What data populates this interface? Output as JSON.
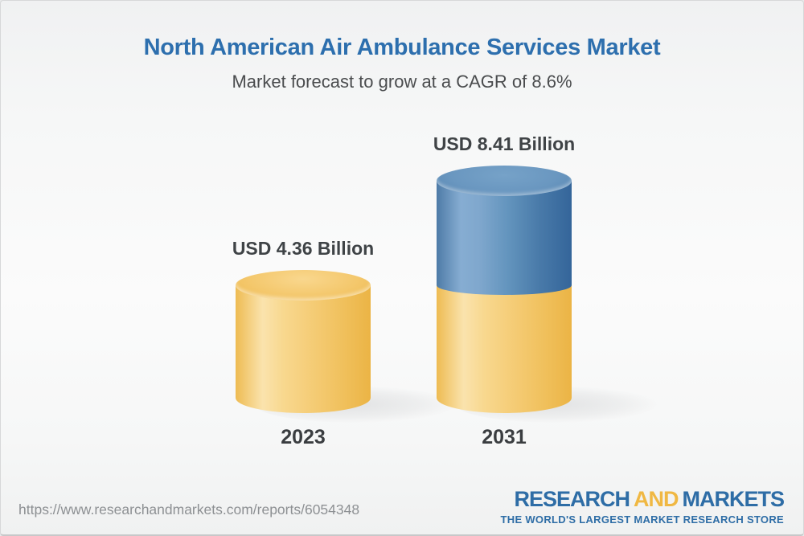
{
  "header": {
    "title": "North American Air Ambulance Services Market",
    "subtitle": "Market forecast to grow at a CAGR of 8.6%"
  },
  "chart_data": {
    "type": "bar",
    "variant": "3d-cylinder-columns",
    "categories": [
      "2023",
      "2031"
    ],
    "values": [
      4.36,
      8.41
    ],
    "value_labels": [
      "USD 4.36 Billion",
      "USD 8.41 Billion"
    ],
    "unit": "USD Billion",
    "cagr_percent": 8.6,
    "title": "North American Air Ambulance Services Market",
    "subtitle": "Market forecast to grow at a CAGR of 8.6%",
    "legend_position": "none",
    "grid": false,
    "axes_shown": false,
    "stacking_note": "2031 column is stacked: yellow lower segment equals the 2023 base value, blue upper segment is forecast growth",
    "colors": {
      "base_segment_yellow": "#f2c35e",
      "growth_segment_blue": "#4b7aa6"
    }
  },
  "footer": {
    "url": "https://www.researchandmarkets.com/reports/6054348",
    "logo": {
      "part1": "RESEARCH",
      "part2": "AND",
      "part3": "MARKETS",
      "tagline": "THE WORLD'S LARGEST MARKET RESEARCH STORE"
    }
  },
  "colors": {
    "title_blue": "#2d6fae",
    "subtitle_gray": "#4a4c4e",
    "label_dark": "#3f4346",
    "url_gray": "#8d9093",
    "logo_blue": "#2e6da6",
    "logo_yellow": "#f0b843",
    "cylinder_yellow": "#f2c35e",
    "cylinder_blue": "#4b7aa6",
    "background_top": "#f0f1f2",
    "background_bottom": "#f0f1f1"
  }
}
